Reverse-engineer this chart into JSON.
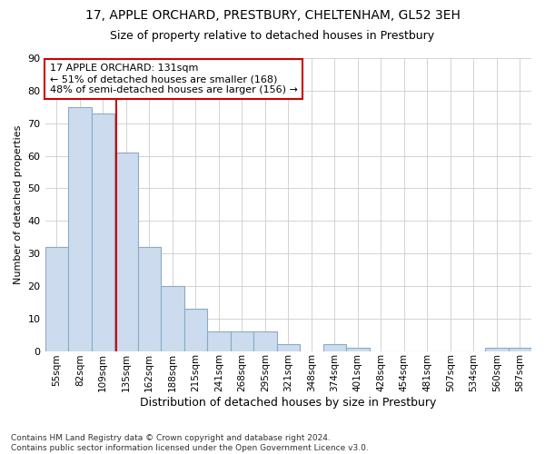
{
  "title1": "17, APPLE ORCHARD, PRESTBURY, CHELTENHAM, GL52 3EH",
  "title2": "Size of property relative to detached houses in Prestbury",
  "xlabel": "Distribution of detached houses by size in Prestbury",
  "ylabel": "Number of detached properties",
  "categories": [
    "55sqm",
    "82sqm",
    "109sqm",
    "135sqm",
    "162sqm",
    "188sqm",
    "215sqm",
    "241sqm",
    "268sqm",
    "295sqm",
    "321sqm",
    "348sqm",
    "374sqm",
    "401sqm",
    "428sqm",
    "454sqm",
    "481sqm",
    "507sqm",
    "534sqm",
    "560sqm",
    "587sqm"
  ],
  "values": [
    32,
    75,
    73,
    61,
    32,
    20,
    13,
    6,
    6,
    6,
    2,
    0,
    2,
    1,
    0,
    0,
    0,
    0,
    0,
    1,
    1
  ],
  "bar_color": "#ccdcee",
  "bar_edge_color": "#88aac8",
  "grid_color": "#cccccc",
  "background_color": "#ffffff",
  "vline_color": "#cc0000",
  "annotation_text": "17 APPLE ORCHARD: 131sqm\n← 51% of detached houses are smaller (168)\n48% of semi-detached houses are larger (156) →",
  "annotation_box_color": "#ffffff",
  "annotation_box_edge": "#cc0000",
  "footnote": "Contains HM Land Registry data © Crown copyright and database right 2024.\nContains public sector information licensed under the Open Government Licence v3.0.",
  "ylim": [
    0,
    90
  ],
  "yticks": [
    0,
    10,
    20,
    30,
    40,
    50,
    60,
    70,
    80,
    90
  ],
  "vline_pos": 2.575
}
